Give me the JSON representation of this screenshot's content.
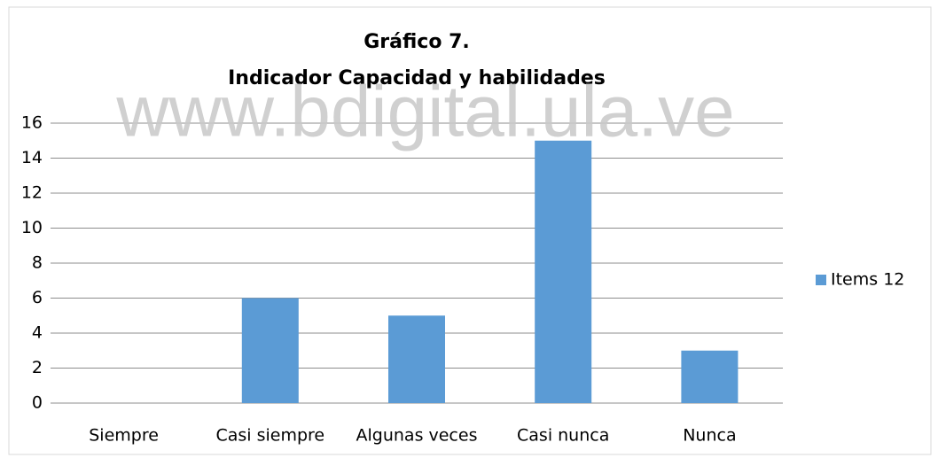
{
  "chart_data": {
    "type": "bar",
    "title": "Gráfico 7.",
    "subtitle": "Indicador Capacidad y habilidades",
    "watermark": "www.bdigital.ula.ve",
    "categories": [
      "Siempre",
      "Casi siempre",
      "Algunas veces",
      "Casi nunca",
      "Nunca"
    ],
    "series": [
      {
        "name": "Items 12",
        "color": "#5b9bd5",
        "values": [
          0,
          6,
          5,
          15,
          3
        ]
      }
    ],
    "ylim": [
      0,
      16
    ],
    "yticks": [
      0,
      2,
      4,
      6,
      8,
      10,
      12,
      14,
      16
    ],
    "grid": true,
    "legend": "right"
  }
}
